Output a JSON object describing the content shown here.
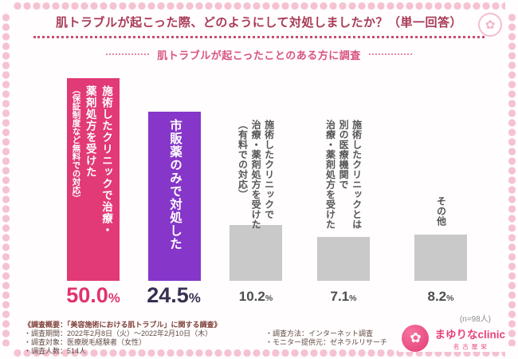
{
  "header": {
    "title": "肌トラブルが起こった際、どのようにして対処しましたか？（単一回答）",
    "subtitle": "肌トラブルが起こったことのある方に調査"
  },
  "chart_data": {
    "type": "bar",
    "title": "肌トラブルが起こった際、どのようにして対処しましたか？（単一回答）",
    "subtitle": "肌トラブルが起こったことのある方に調査",
    "unit": "%",
    "categories": [
      "施術したクリニックで治療・薬剤処方を受けた（保証制度など無料での対応）",
      "市販薬のみで対処した",
      "施術したクリニックで治療・薬剤処方を受けた（有料での対応）",
      "施術したクリニックとは別の医療機関で治療・薬剤処方を受けた",
      "その他"
    ],
    "values": [
      50.0,
      24.5,
      10.2,
      7.1,
      8.2
    ],
    "bar_colors": [
      "#e13a76",
      "#8636c9",
      "#c9c9c9",
      "#c9c9c9",
      "#c9c9c9"
    ],
    "sample_note": "(n=98人)",
    "ylim": [
      0,
      50
    ],
    "grid": false,
    "legend": false
  },
  "bars": [
    {
      "lines": [
        "施術したクリニックで治療・",
        "薬剤処方を受けた",
        "（保証制度など無料での対応）"
      ],
      "value": "50.0",
      "unit": "%"
    },
    {
      "lines": [
        "市販薬のみで対処した"
      ],
      "value": "24.5",
      "unit": "%"
    },
    {
      "lines": [
        "施術したクリニックで",
        "治療・薬剤処方を受けた",
        "（有料での対応）"
      ],
      "value": "10.2",
      "unit": "%"
    },
    {
      "lines": [
        "施術したクリニックとは",
        "別の医療機関で",
        "治療・薬剤処方を受けた"
      ],
      "value": "7.1",
      "unit": "%"
    },
    {
      "lines": [
        "その他"
      ],
      "value": "8.2",
      "unit": "%"
    }
  ],
  "footer": {
    "heading": "《調査概要：「美容施術における肌トラブル」に関する調査》",
    "left_items": [
      "・調査期間：2022年2月8日（火）〜2022年2月10日（木）",
      "・調査対象：医療脱毛経験者（女性）",
      "・調査人数：514人"
    ],
    "right_items": [
      "・調査方法：インターネット調査",
      "・モニター提供元：ゼネラルリサーチ"
    ]
  },
  "logo": {
    "flower_glyph": "✿",
    "name": "まゆりなclinic",
    "location": "名古屋栄"
  }
}
